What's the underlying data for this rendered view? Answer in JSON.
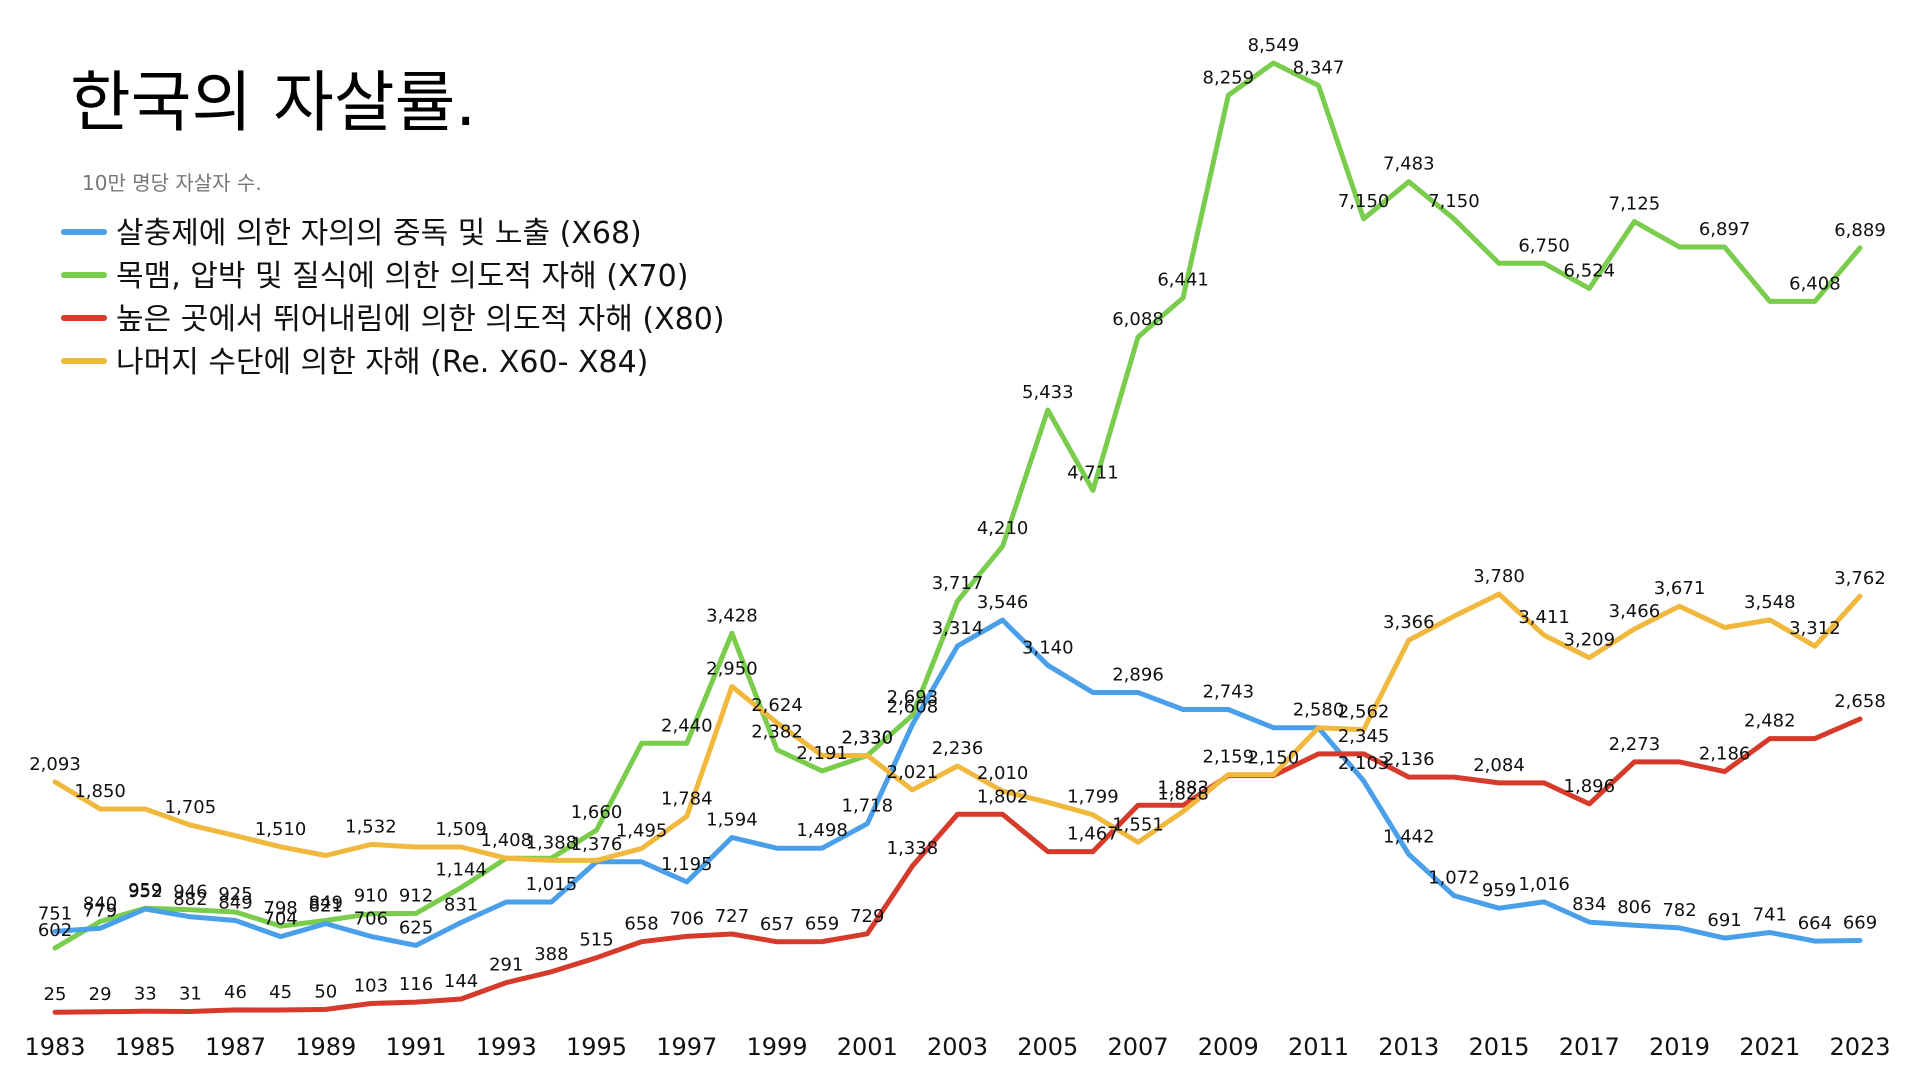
{
  "chart_data": {
    "type": "line",
    "title": "한국의 자살률.",
    "subtitle": "10만 명당 자살자 수.",
    "xlabel": "",
    "ylabel": "",
    "legend_position": "top-left",
    "grid": false,
    "x": [
      1983,
      1984,
      1985,
      1986,
      1987,
      1988,
      1989,
      1990,
      1991,
      1992,
      1993,
      1994,
      1995,
      1996,
      1997,
      1998,
      1999,
      2000,
      2001,
      2002,
      2003,
      2004,
      2005,
      2006,
      2007,
      2008,
      2009,
      2010,
      2011,
      2012,
      2013,
      2014,
      2015,
      2016,
      2017,
      2018,
      2019,
      2020,
      2021,
      2022,
      2023
    ],
    "x_tick_labels": [
      "1983",
      "1985",
      "1987",
      "1989",
      "1991",
      "1993",
      "1995",
      "1997",
      "1999",
      "2001",
      "2003",
      "2005",
      "2007",
      "2009",
      "2011",
      "2013",
      "2015",
      "2017",
      "2019",
      "2021",
      "2023"
    ],
    "ylim": [
      0,
      8549
    ],
    "series": [
      {
        "name": "살충제에 의한 자의의 중독 및 노출 (X68)",
        "color": "#4A9FEA",
        "values": [
          751,
          779,
          952,
          882,
          849,
          704,
          821,
          706,
          625,
          831,
          1015,
          1015,
          1376,
          1376,
          1195,
          1594,
          1498,
          1498,
          1718,
          2608,
          3314,
          3546,
          3140,
          2896,
          2896,
          2743,
          2743,
          2580,
          2580,
          2103,
          1442,
          1072,
          959,
          1016,
          834,
          806,
          782,
          691,
          741,
          664,
          669
        ],
        "labels": [
          "751",
          "779",
          "952",
          "882",
          "849",
          "704",
          "821",
          "706",
          "625",
          "831",
          "",
          "1,015",
          "1,376",
          "",
          "1,195",
          "1,594",
          "",
          "1,498",
          "1,718",
          "2,608",
          "3,314",
          "3,546",
          "3,140",
          "",
          "2,896",
          "",
          "2,743",
          "",
          "2,580",
          "2,103",
          "1,442",
          "1,072",
          "959",
          "1,016",
          "834",
          "806",
          "782",
          "691",
          "741",
          "664",
          "669"
        ]
      },
      {
        "name": "목맴, 압박 및 질식에 의한 의도적 자해 (X70)",
        "color": "#7ACC4C",
        "values": [
          602,
          840,
          959,
          946,
          925,
          798,
          849,
          910,
          912,
          1144,
          1408,
          1408,
          1660,
          2440,
          2440,
          3428,
          2382,
          2191,
          2330,
          2693,
          3717,
          4210,
          5433,
          4711,
          6088,
          6441,
          8259,
          8549,
          8347,
          7150,
          7483,
          7150,
          6750,
          6750,
          6524,
          7125,
          6897,
          6897,
          6408,
          6408,
          6889
        ],
        "labels": [
          "602",
          "840",
          "959",
          "946",
          "925",
          "798",
          "849",
          "910",
          "912",
          "1,144",
          "1,408",
          "",
          "1,660",
          "",
          "2,440",
          "3,428",
          "2,382",
          "2,191",
          "2,330",
          "2,693",
          "3,717",
          "4,210",
          "5,433",
          "4,711",
          "6,088",
          "6,441",
          "8,259",
          "8,549",
          "8,347",
          "7,150",
          "7,483",
          "7,150",
          "",
          "6,750",
          "6,524",
          "7,125",
          "",
          "6,897",
          "",
          "6,408",
          "6,889"
        ]
      },
      {
        "name": "높은 곳에서 뛰어내림에 의한 의도적 자해 (X80)",
        "color": "#D63A2A",
        "values": [
          25,
          29,
          33,
          31,
          46,
          45,
          50,
          103,
          116,
          144,
          291,
          388,
          515,
          658,
          706,
          727,
          657,
          659,
          729,
          1338,
          1802,
          1802,
          1467,
          1467,
          1883,
          1883,
          2150,
          2150,
          2345,
          2345,
          2136,
          2136,
          2084,
          2084,
          1896,
          2273,
          2273,
          2186,
          2482,
          2482,
          2658
        ],
        "labels": [
          "25",
          "29",
          "33",
          "31",
          "46",
          "45",
          "50",
          "103",
          "116",
          "144",
          "291",
          "388",
          "515",
          "658",
          "706",
          "727",
          "657",
          "659",
          "729",
          "1,338",
          "",
          "1,802",
          "",
          "1,467",
          "",
          "1,883",
          "",
          "2,150",
          "",
          "2,345",
          "2,136",
          "",
          "2,084",
          "",
          "1,896",
          "2,273",
          "",
          "2,186",
          "2,482",
          "",
          "2,658"
        ]
      },
      {
        "name": "나머지 수단에 의한 자해 (Re. X60- X84)",
        "color": "#F0B93D",
        "values": [
          2093,
          1850,
          1850,
          1705,
          1610,
          1510,
          1432,
          1532,
          1509,
          1509,
          1408,
          1388,
          1388,
          1495,
          1784,
          2950,
          2624,
          2330,
          2330,
          2021,
          2236,
          2010,
          1910,
          1799,
          1551,
          1828,
          2159,
          2159,
          2580,
          2562,
          3366,
          3580,
          3780,
          3411,
          3209,
          3466,
          3671,
          3480,
          3548,
          3312,
          3762
        ],
        "labels": [
          "2,093",
          "1,850",
          "",
          "1,705",
          "",
          "1,510",
          "",
          "1,532",
          "",
          "1,509",
          "",
          "1,388",
          "",
          "1,495",
          "1,784",
          "2,950",
          "2,624",
          "",
          "2,330",
          "2,021",
          "2,236",
          "2,010",
          "",
          "1,799",
          "1,551",
          "1,828",
          "2,159",
          "",
          "",
          "2,562",
          "3,366",
          "",
          "3,780",
          "3,411",
          "3,209",
          "3,466",
          "3,671",
          "",
          "3,548",
          "3,312",
          "3,762"
        ]
      }
    ]
  }
}
